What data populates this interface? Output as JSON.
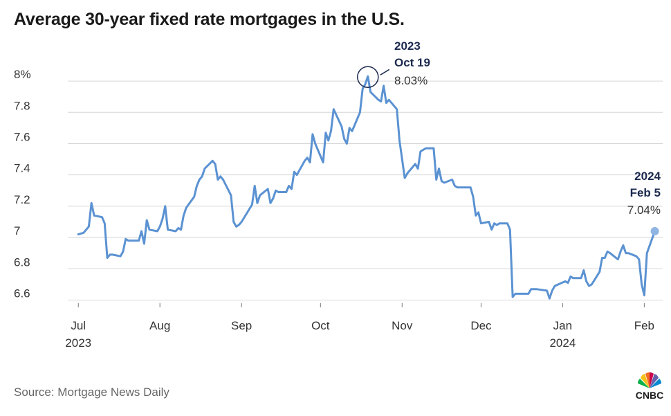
{
  "title": "Average 30-year fixed rate mortgages in the U.S.",
  "source": "Source: Mortgage News Daily",
  "logo_text": "CNBC",
  "colors": {
    "line": "#5b92d2",
    "grid": "#d6d6d6",
    "annotation": "#1d2a4f",
    "end_marker": "#8fb5e3"
  },
  "chart_data": {
    "type": "line",
    "title": "Average 30-year fixed rate mortgages in the U.S.",
    "xlabel": "",
    "ylabel": "",
    "ylim": [
      6.58,
      8.08
    ],
    "yticks": [
      {
        "value": 6.6,
        "label": "6.6"
      },
      {
        "value": 6.8,
        "label": "6.8"
      },
      {
        "value": 7.0,
        "label": "7"
      },
      {
        "value": 7.2,
        "label": "7.2"
      },
      {
        "value": 7.4,
        "label": "7.4"
      },
      {
        "value": 7.6,
        "label": "7.6"
      },
      {
        "value": 7.8,
        "label": "7.8"
      },
      {
        "value": 8.0,
        "label": "8%"
      }
    ],
    "xlim": [
      "2023-06-27",
      "2024-02-08"
    ],
    "xticks": [
      {
        "date": "2023-07-01",
        "label": "Jul",
        "year": "2023"
      },
      {
        "date": "2023-08-01",
        "label": "Aug",
        "year": ""
      },
      {
        "date": "2023-09-01",
        "label": "Sep",
        "year": ""
      },
      {
        "date": "2023-10-01",
        "label": "Oct",
        "year": ""
      },
      {
        "date": "2023-11-01",
        "label": "Nov",
        "year": ""
      },
      {
        "date": "2023-12-01",
        "label": "Dec",
        "year": ""
      },
      {
        "date": "2024-01-01",
        "label": "Jan",
        "year": "2024"
      },
      {
        "date": "2024-02-01",
        "label": "Feb",
        "year": ""
      }
    ],
    "grid": true,
    "series": [
      {
        "points": [
          [
            "2023-07-01",
            7.02
          ],
          [
            "2023-07-03",
            7.03
          ],
          [
            "2023-07-05",
            7.07
          ],
          [
            "2023-07-06",
            7.22
          ],
          [
            "2023-07-07",
            7.14
          ],
          [
            "2023-07-10",
            7.13
          ],
          [
            "2023-07-11",
            7.09
          ],
          [
            "2023-07-12",
            6.87
          ],
          [
            "2023-07-13",
            6.89
          ],
          [
            "2023-07-14",
            6.89
          ],
          [
            "2023-07-17",
            6.88
          ],
          [
            "2023-07-18",
            6.91
          ],
          [
            "2023-07-19",
            6.99
          ],
          [
            "2023-07-20",
            6.98
          ],
          [
            "2023-07-21",
            6.98
          ],
          [
            "2023-07-24",
            6.98
          ],
          [
            "2023-07-25",
            7.04
          ],
          [
            "2023-07-26",
            6.96
          ],
          [
            "2023-07-27",
            7.11
          ],
          [
            "2023-07-28",
            7.05
          ],
          [
            "2023-07-31",
            7.04
          ],
          [
            "2023-08-01",
            7.07
          ],
          [
            "2023-08-02",
            7.12
          ],
          [
            "2023-08-03",
            7.2
          ],
          [
            "2023-08-04",
            7.05
          ],
          [
            "2023-08-07",
            7.04
          ],
          [
            "2023-08-08",
            7.06
          ],
          [
            "2023-08-09",
            7.05
          ],
          [
            "2023-08-10",
            7.14
          ],
          [
            "2023-08-11",
            7.19
          ],
          [
            "2023-08-14",
            7.26
          ],
          [
            "2023-08-15",
            7.33
          ],
          [
            "2023-08-16",
            7.37
          ],
          [
            "2023-08-17",
            7.39
          ],
          [
            "2023-08-18",
            7.44
          ],
          [
            "2023-08-21",
            7.49
          ],
          [
            "2023-08-22",
            7.47
          ],
          [
            "2023-08-23",
            7.37
          ],
          [
            "2023-08-24",
            7.39
          ],
          [
            "2023-08-25",
            7.37
          ],
          [
            "2023-08-28",
            7.27
          ],
          [
            "2023-08-29",
            7.1
          ],
          [
            "2023-08-30",
            7.07
          ],
          [
            "2023-08-31",
            7.08
          ],
          [
            "2023-09-01",
            7.1
          ],
          [
            "2023-09-05",
            7.21
          ],
          [
            "2023-09-06",
            7.33
          ],
          [
            "2023-09-07",
            7.22
          ],
          [
            "2023-09-08",
            7.27
          ],
          [
            "2023-09-11",
            7.31
          ],
          [
            "2023-09-12",
            7.22
          ],
          [
            "2023-09-13",
            7.25
          ],
          [
            "2023-09-14",
            7.3
          ],
          [
            "2023-09-15",
            7.29
          ],
          [
            "2023-09-18",
            7.29
          ],
          [
            "2023-09-19",
            7.33
          ],
          [
            "2023-09-20",
            7.31
          ],
          [
            "2023-09-21",
            7.42
          ],
          [
            "2023-09-22",
            7.4
          ],
          [
            "2023-09-25",
            7.49
          ],
          [
            "2023-09-26",
            7.51
          ],
          [
            "2023-09-27",
            7.48
          ],
          [
            "2023-09-28",
            7.66
          ],
          [
            "2023-09-29",
            7.6
          ],
          [
            "2023-10-02",
            7.48
          ],
          [
            "2023-10-03",
            7.67
          ],
          [
            "2023-10-04",
            7.62
          ],
          [
            "2023-10-05",
            7.68
          ],
          [
            "2023-10-06",
            7.82
          ],
          [
            "2023-10-09",
            7.71
          ],
          [
            "2023-10-10",
            7.63
          ],
          [
            "2023-10-11",
            7.6
          ],
          [
            "2023-10-12",
            7.7
          ],
          [
            "2023-10-13",
            7.68
          ],
          [
            "2023-10-16",
            7.8
          ],
          [
            "2023-10-17",
            7.95
          ],
          [
            "2023-10-18",
            7.98
          ],
          [
            "2023-10-19",
            8.03
          ],
          [
            "2023-10-20",
            7.93
          ],
          [
            "2023-10-23",
            7.88
          ],
          [
            "2023-10-24",
            7.87
          ],
          [
            "2023-10-25",
            7.97
          ],
          [
            "2023-10-26",
            7.86
          ],
          [
            "2023-10-27",
            7.88
          ],
          [
            "2023-10-30",
            7.82
          ],
          [
            "2023-10-31",
            7.62
          ],
          [
            "2023-11-01",
            7.5
          ],
          [
            "2023-11-02",
            7.38
          ],
          [
            "2023-11-03",
            7.41
          ],
          [
            "2023-11-06",
            7.47
          ],
          [
            "2023-11-07",
            7.44
          ],
          [
            "2023-11-08",
            7.55
          ],
          [
            "2023-11-09",
            7.56
          ],
          [
            "2023-11-10",
            7.57
          ],
          [
            "2023-11-13",
            7.57
          ],
          [
            "2023-11-14",
            7.37
          ],
          [
            "2023-11-15",
            7.44
          ],
          [
            "2023-11-16",
            7.36
          ],
          [
            "2023-11-17",
            7.35
          ],
          [
            "2023-11-20",
            7.37
          ],
          [
            "2023-11-21",
            7.33
          ],
          [
            "2023-11-22",
            7.32
          ],
          [
            "2023-11-24",
            7.32
          ],
          [
            "2023-11-27",
            7.32
          ],
          [
            "2023-11-28",
            7.26
          ],
          [
            "2023-11-29",
            7.14
          ],
          [
            "2023-11-30",
            7.16
          ],
          [
            "2023-12-01",
            7.09
          ],
          [
            "2023-12-04",
            7.1
          ],
          [
            "2023-12-05",
            7.05
          ],
          [
            "2023-12-06",
            7.09
          ],
          [
            "2023-12-07",
            7.08
          ],
          [
            "2023-12-08",
            7.09
          ],
          [
            "2023-12-11",
            7.09
          ],
          [
            "2023-12-12",
            7.05
          ],
          [
            "2023-12-13",
            6.62
          ],
          [
            "2023-12-14",
            6.64
          ],
          [
            "2023-12-15",
            6.64
          ],
          [
            "2023-12-18",
            6.64
          ],
          [
            "2023-12-19",
            6.64
          ],
          [
            "2023-12-20",
            6.67
          ],
          [
            "2023-12-21",
            6.67
          ],
          [
            "2023-12-22",
            6.67
          ],
          [
            "2023-12-26",
            6.66
          ],
          [
            "2023-12-27",
            6.61
          ],
          [
            "2023-12-28",
            6.66
          ],
          [
            "2023-12-29",
            6.69
          ],
          [
            "2024-01-02",
            6.72
          ],
          [
            "2024-01-03",
            6.71
          ],
          [
            "2024-01-04",
            6.75
          ],
          [
            "2024-01-05",
            6.74
          ],
          [
            "2024-01-08",
            6.74
          ],
          [
            "2024-01-09",
            6.79
          ],
          [
            "2024-01-10",
            6.72
          ],
          [
            "2024-01-11",
            6.69
          ],
          [
            "2024-01-12",
            6.7
          ],
          [
            "2024-01-15",
            6.78
          ],
          [
            "2024-01-16",
            6.87
          ],
          [
            "2024-01-17",
            6.87
          ],
          [
            "2024-01-18",
            6.91
          ],
          [
            "2024-01-19",
            6.9
          ],
          [
            "2024-01-22",
            6.86
          ],
          [
            "2024-01-23",
            6.91
          ],
          [
            "2024-01-24",
            6.95
          ],
          [
            "2024-01-25",
            6.9
          ],
          [
            "2024-01-26",
            6.9
          ],
          [
            "2024-01-29",
            6.88
          ],
          [
            "2024-01-30",
            6.86
          ],
          [
            "2024-01-31",
            6.7
          ],
          [
            "2024-02-01",
            6.63
          ],
          [
            "2024-02-02",
            6.9
          ],
          [
            "2024-02-05",
            7.04
          ]
        ]
      }
    ],
    "annotations": [
      {
        "date": "2023-10-19",
        "value": 8.03,
        "year": "2023",
        "day": "Oct 19",
        "value_label": "8.03%",
        "marker": "circle-outline"
      },
      {
        "date": "2024-02-05",
        "value": 7.04,
        "year": "2024",
        "day": "Feb 5",
        "value_label": "7.04%",
        "marker": "dot"
      }
    ]
  }
}
